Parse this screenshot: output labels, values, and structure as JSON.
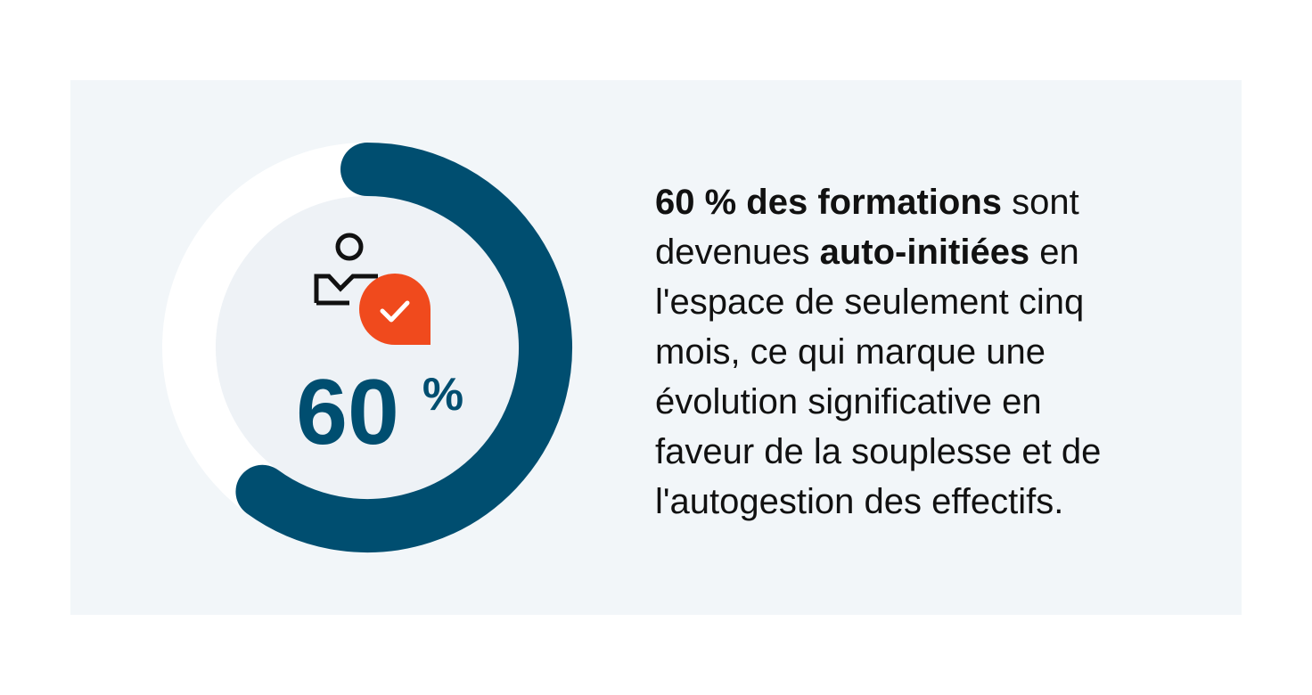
{
  "chart_data": {
    "type": "donut",
    "values": [
      60
    ],
    "unit": "%",
    "max": 100,
    "color": "#004e70",
    "track_color": "#ffffff",
    "text_lines": [
      [
        {
          "text": "60 % des formations",
          "bold": true
        },
        {
          "text": " sont",
          "bold": false
        }
      ],
      [
        {
          "text": "devenues ",
          "bold": false
        },
        {
          "text": "auto-initiées",
          "bold": true
        },
        {
          "text": " en",
          "bold": false
        }
      ],
      [
        {
          "text": "l'espace de seulement cinq",
          "bold": false
        }
      ],
      [
        {
          "text": "mois, ce qui marque une",
          "bold": false
        }
      ],
      [
        {
          "text": "évolution significative en",
          "bold": false
        }
      ],
      [
        {
          "text": "faveur de la souplesse et de",
          "bold": false
        }
      ],
      [
        {
          "text": "l'autogestion des effectifs.",
          "bold": false
        }
      ]
    ]
  }
}
